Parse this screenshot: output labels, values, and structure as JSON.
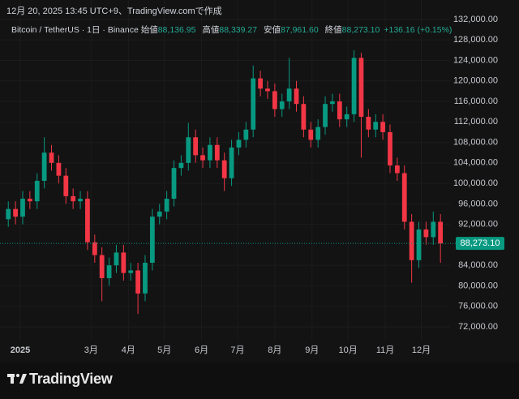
{
  "header": {
    "created": "12月 20, 2025 13:45 UTC+9、TradingView.comで作成",
    "symbol": "Bitcoin / TetherUS · 1日 · Binance",
    "fields": [
      {
        "label": "始値",
        "value": "88,136.95"
      },
      {
        "label": "高値",
        "value": "88,339.27"
      },
      {
        "label": "安値",
        "value": "87,961.60"
      },
      {
        "label": "終値",
        "value": "88,273.10"
      }
    ],
    "change": "+136.16 (+0.15%)"
  },
  "chart_data": {
    "type": "candlestick",
    "up_color": "#089981",
    "down_color": "#f23645",
    "grid": true,
    "x": [
      -10,
      -4,
      2,
      8,
      14,
      20,
      26,
      32,
      38,
      44,
      50,
      56,
      62,
      68,
      74,
      80,
      86,
      92,
      98,
      104,
      110,
      116,
      122,
      128,
      134,
      140,
      146,
      152,
      158,
      164,
      170,
      176,
      182,
      188,
      194,
      200,
      206,
      212,
      218,
      224,
      230,
      236,
      242,
      248,
      254,
      260,
      266,
      272,
      278,
      284,
      290,
      296,
      302,
      308,
      314,
      320,
      326,
      332,
      338,
      344,
      350
    ],
    "open": [
      93000,
      95000,
      93500,
      97000,
      96500,
      100500,
      106000,
      104000,
      101500,
      97500,
      96500,
      97000,
      88500,
      86000,
      81500,
      84000,
      86500,
      82500,
      83000,
      78500,
      84500,
      93500,
      94500,
      97000,
      103000,
      104000,
      109000,
      105500,
      104500,
      107500,
      104500,
      101000,
      107000,
      108500,
      110500,
      120500,
      118500,
      118000,
      114500,
      116000,
      118500,
      115500,
      110500,
      108500,
      111000,
      115500,
      116000,
      112500,
      113500,
      124500,
      113000,
      110500,
      112000,
      110000,
      103500,
      102000,
      92500,
      85000,
      91000,
      89500,
      92500
    ],
    "high": [
      96500,
      96500,
      98500,
      98500,
      102000,
      109000,
      107500,
      105500,
      103000,
      99000,
      98500,
      98500,
      90000,
      87500,
      85500,
      88000,
      88000,
      84500,
      84500,
      86000,
      95000,
      96000,
      98500,
      104500,
      105500,
      111800,
      110500,
      107000,
      109000,
      109000,
      106000,
      108500,
      110000,
      112000,
      123000,
      122000,
      120000,
      119500,
      117500,
      124500,
      120000,
      117000,
      112000,
      112500,
      117000,
      117500,
      117500,
      115000,
      126000,
      125500,
      114500,
      113500,
      113500,
      111500,
      105000,
      103500,
      94000,
      92500,
      92500,
      94500,
      94000
    ],
    "low": [
      91500,
      92000,
      92000,
      95000,
      95000,
      99000,
      102500,
      100000,
      96000,
      95000,
      95000,
      87000,
      84500,
      77000,
      80000,
      82500,
      81000,
      81000,
      74500,
      77000,
      83000,
      92000,
      93000,
      95500,
      101500,
      102500,
      104000,
      103000,
      103000,
      103000,
      98500,
      99500,
      105500,
      107000,
      109000,
      117000,
      116500,
      113000,
      113000,
      114500,
      114000,
      109000,
      107000,
      107000,
      109500,
      114000,
      111000,
      111000,
      112000,
      105000,
      109000,
      109000,
      108500,
      102000,
      100500,
      91000,
      80600,
      83500,
      88000,
      88000,
      84500
    ],
    "close": [
      95000,
      93500,
      97000,
      96500,
      100500,
      106000,
      104000,
      101500,
      97500,
      96500,
      97000,
      88500,
      86000,
      81500,
      84000,
      86500,
      82500,
      83000,
      78500,
      84500,
      93500,
      94500,
      97000,
      103000,
      104000,
      109000,
      105500,
      104500,
      107500,
      104500,
      101000,
      107000,
      108500,
      110500,
      120500,
      118500,
      118000,
      114500,
      116000,
      118500,
      115500,
      110500,
      108500,
      111000,
      115500,
      116000,
      112500,
      113500,
      124500,
      113000,
      110500,
      112000,
      110000,
      103500,
      102000,
      92500,
      85000,
      91000,
      89500,
      92500,
      88273.1
    ],
    "xlim": [
      -11.5,
      358
    ],
    "xticks": [
      {
        "value": 0,
        "label": "2025"
      },
      {
        "value": 59,
        "label": "3月"
      },
      {
        "value": 90,
        "label": "4月"
      },
      {
        "value": 120,
        "label": "5月"
      },
      {
        "value": 151,
        "label": "6月"
      },
      {
        "value": 181,
        "label": "7月"
      },
      {
        "value": 212,
        "label": "8月"
      },
      {
        "value": 243,
        "label": "9月"
      },
      {
        "value": 273,
        "label": "10月"
      },
      {
        "value": 304,
        "label": "11月"
      },
      {
        "value": 334,
        "label": "12月"
      }
    ],
    "ylim": [
      69300,
      135800
    ],
    "yticks": [
      {
        "value": 72000,
        "label": "72,000.00"
      },
      {
        "value": 76000,
        "label": "76,000.00"
      },
      {
        "value": 80000,
        "label": "80,000.00"
      },
      {
        "value": 84000,
        "label": "84,000.00"
      },
      {
        "value": 92000,
        "label": "92,000.00"
      },
      {
        "value": 96000,
        "label": "96,000.00"
      },
      {
        "value": 100000,
        "label": "100,000.00"
      },
      {
        "value": 104000,
        "label": "104,000.00"
      },
      {
        "value": 108000,
        "label": "108,000.00"
      },
      {
        "value": 112000,
        "label": "112,000.00"
      },
      {
        "value": 116000,
        "label": "116,000.00"
      },
      {
        "value": 120000,
        "label": "120,000.00"
      },
      {
        "value": 124000,
        "label": "124,000.00"
      },
      {
        "value": 128000,
        "label": "128,000.00"
      },
      {
        "value": 132000,
        "label": "132,000.00"
      }
    ],
    "last_price": {
      "value": 88273.1,
      "label": "88,273.10"
    }
  },
  "footer": {
    "brand": "TradingView"
  }
}
